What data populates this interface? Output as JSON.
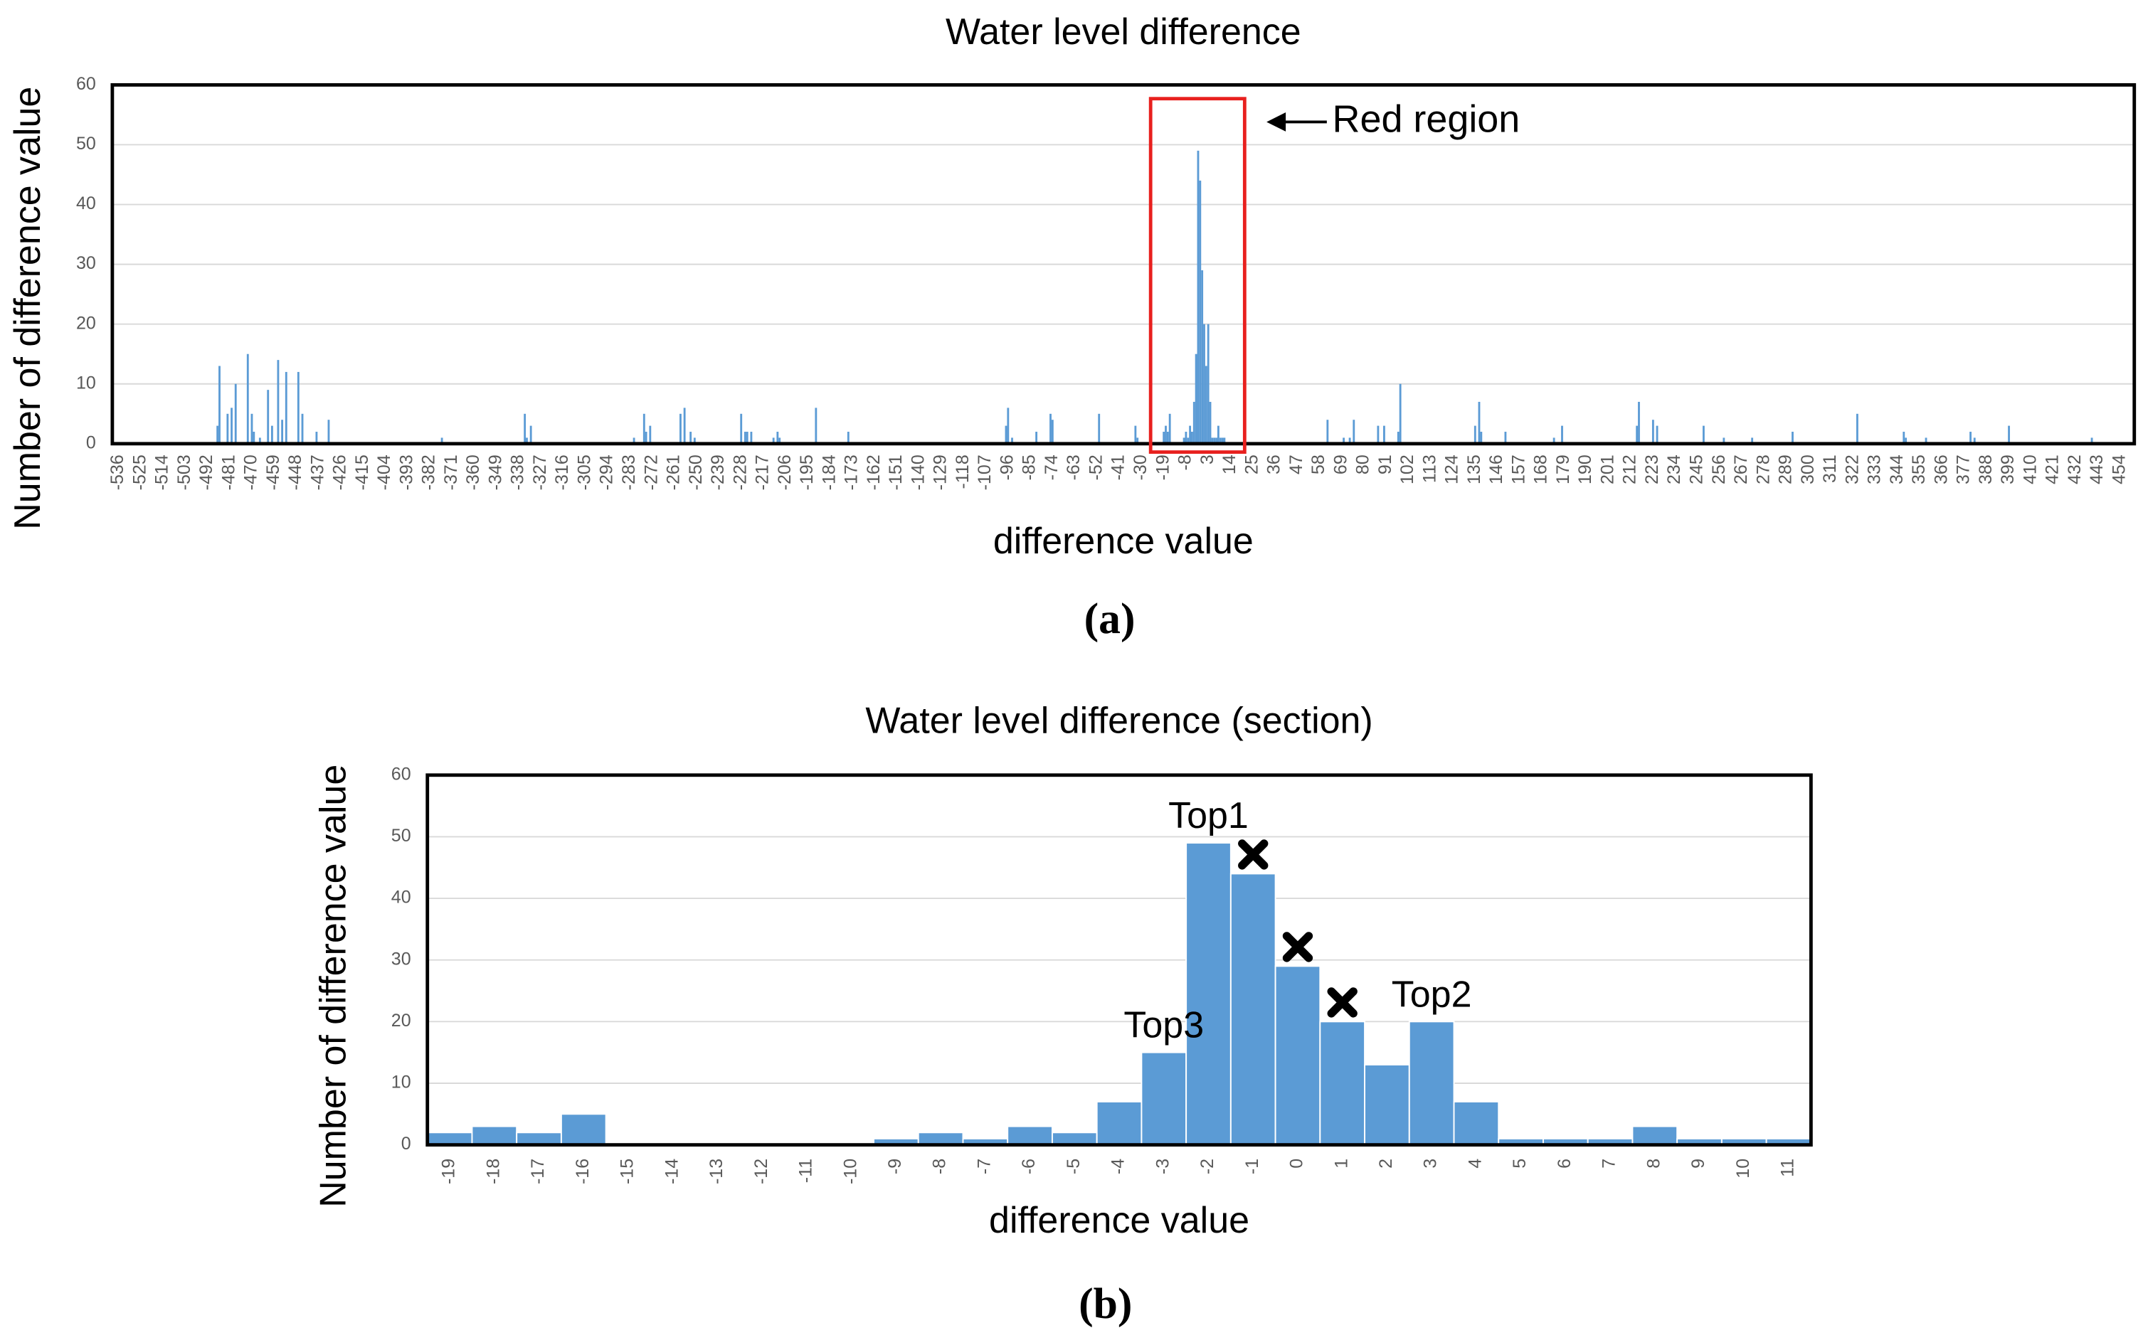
{
  "chart_data": [
    {
      "type": "bar",
      "title": "Water level difference",
      "xlabel": "difference value",
      "ylabel": "Number of difference value",
      "caption": "(a)",
      "color": "#5b9bd5",
      "grid": true,
      "x": [
        -487,
        -486,
        -482,
        -480,
        -478,
        -472,
        -470,
        -469,
        -466,
        -462,
        -460,
        -457,
        -455,
        -453,
        -447,
        -445,
        -438,
        -432,
        -376,
        -335,
        -334,
        -332,
        -281,
        -276,
        -275,
        -273,
        -258,
        -256,
        -253,
        -251,
        -228,
        -226,
        -225,
        -223,
        -212,
        -210,
        -209,
        -191,
        -175,
        -97,
        -96,
        -94,
        -82,
        -75,
        -74,
        -51,
        -33,
        -32,
        -19,
        -18,
        -17,
        -16,
        -9,
        -8,
        -7,
        -6,
        -5,
        -4,
        -3,
        -2,
        -1,
        0,
        1,
        2,
        3,
        4,
        5,
        6,
        7,
        8,
        9,
        10,
        11,
        62,
        70,
        73,
        75,
        87,
        90,
        97,
        98,
        135,
        137,
        138,
        150,
        174,
        178,
        215,
        216,
        223,
        225,
        248,
        258,
        272,
        292,
        324,
        347,
        348,
        358,
        380,
        382,
        399,
        440
      ],
      "values": [
        3,
        13,
        5,
        6,
        10,
        15,
        5,
        2,
        1,
        9,
        3,
        14,
        4,
        12,
        12,
        5,
        2,
        4,
        1,
        5,
        1,
        3,
        1,
        5,
        2,
        3,
        5,
        6,
        2,
        1,
        5,
        2,
        2,
        2,
        1,
        2,
        1,
        6,
        2,
        3,
        6,
        1,
        2,
        5,
        4,
        5,
        3,
        1,
        2,
        3,
        2,
        5,
        1,
        2,
        1,
        3,
        2,
        7,
        15,
        49,
        44,
        29,
        20,
        13,
        20,
        7,
        1,
        1,
        1,
        3,
        1,
        1,
        1,
        4,
        1,
        1,
        4,
        3,
        3,
        2,
        10,
        3,
        7,
        2,
        2,
        1,
        3,
        3,
        7,
        4,
        3,
        3,
        1,
        1,
        2,
        5,
        2,
        1,
        1,
        2,
        1,
        3,
        1
      ],
      "xlim": [
        -539,
        461
      ],
      "xticks": [
        -536,
        -525,
        -514,
        -503,
        -492,
        -481,
        -470,
        -459,
        -448,
        -437,
        -426,
        -415,
        -404,
        -393,
        -382,
        -371,
        -360,
        -349,
        -338,
        -327,
        -316,
        -305,
        -294,
        -283,
        -272,
        -261,
        -250,
        -239,
        -228,
        -217,
        -206,
        -195,
        -184,
        -173,
        -162,
        -151,
        -140,
        -129,
        -118,
        -107,
        -96,
        -85,
        -74,
        -63,
        -52,
        -41,
        -30,
        -19,
        -8,
        3,
        14,
        25,
        36,
        47,
        58,
        69,
        80,
        91,
        102,
        113,
        124,
        135,
        146,
        157,
        168,
        179,
        190,
        201,
        212,
        223,
        234,
        245,
        256,
        267,
        278,
        289,
        300,
        311,
        322,
        333,
        344,
        355,
        366,
        377,
        388,
        399,
        410,
        421,
        432,
        443,
        454
      ],
      "ylim": [
        0,
        60
      ],
      "yticks": [
        0,
        10,
        20,
        30,
        40,
        50,
        60
      ],
      "highlight": {
        "label": "Red region",
        "color": "#e8201e",
        "xlim": [
          -25.5,
          21
        ],
        "ylim": [
          -1.4,
          57.7
        ]
      }
    },
    {
      "type": "bar",
      "title": "Water level difference (section)",
      "xlabel": "difference value",
      "ylabel": "Number of difference value",
      "caption": "(b)",
      "color": "#5b9bd5",
      "grid": true,
      "categories": [
        -19,
        -18,
        -17,
        -16,
        -15,
        -14,
        -13,
        -12,
        -11,
        -10,
        -9,
        -8,
        -7,
        -6,
        -5,
        -4,
        -3,
        -2,
        -1,
        0,
        1,
        2,
        3,
        4,
        5,
        6,
        7,
        8,
        9,
        10,
        11
      ],
      "values": [
        2,
        3,
        2,
        5,
        0,
        0,
        0,
        0,
        0,
        0,
        1,
        2,
        1,
        3,
        2,
        7,
        15,
        49,
        44,
        29,
        20,
        13,
        20,
        7,
        1,
        1,
        1,
        3,
        1,
        1,
        1
      ],
      "ylim": [
        0,
        60
      ],
      "yticks": [
        0,
        10,
        20,
        30,
        40,
        50,
        60
      ],
      "annotations": [
        {
          "text": "Top1",
          "category": -2
        },
        {
          "text": "Top2",
          "category": 3
        },
        {
          "text": "Top3",
          "category": -3
        }
      ],
      "crossed": [
        -1,
        0,
        1
      ]
    }
  ]
}
